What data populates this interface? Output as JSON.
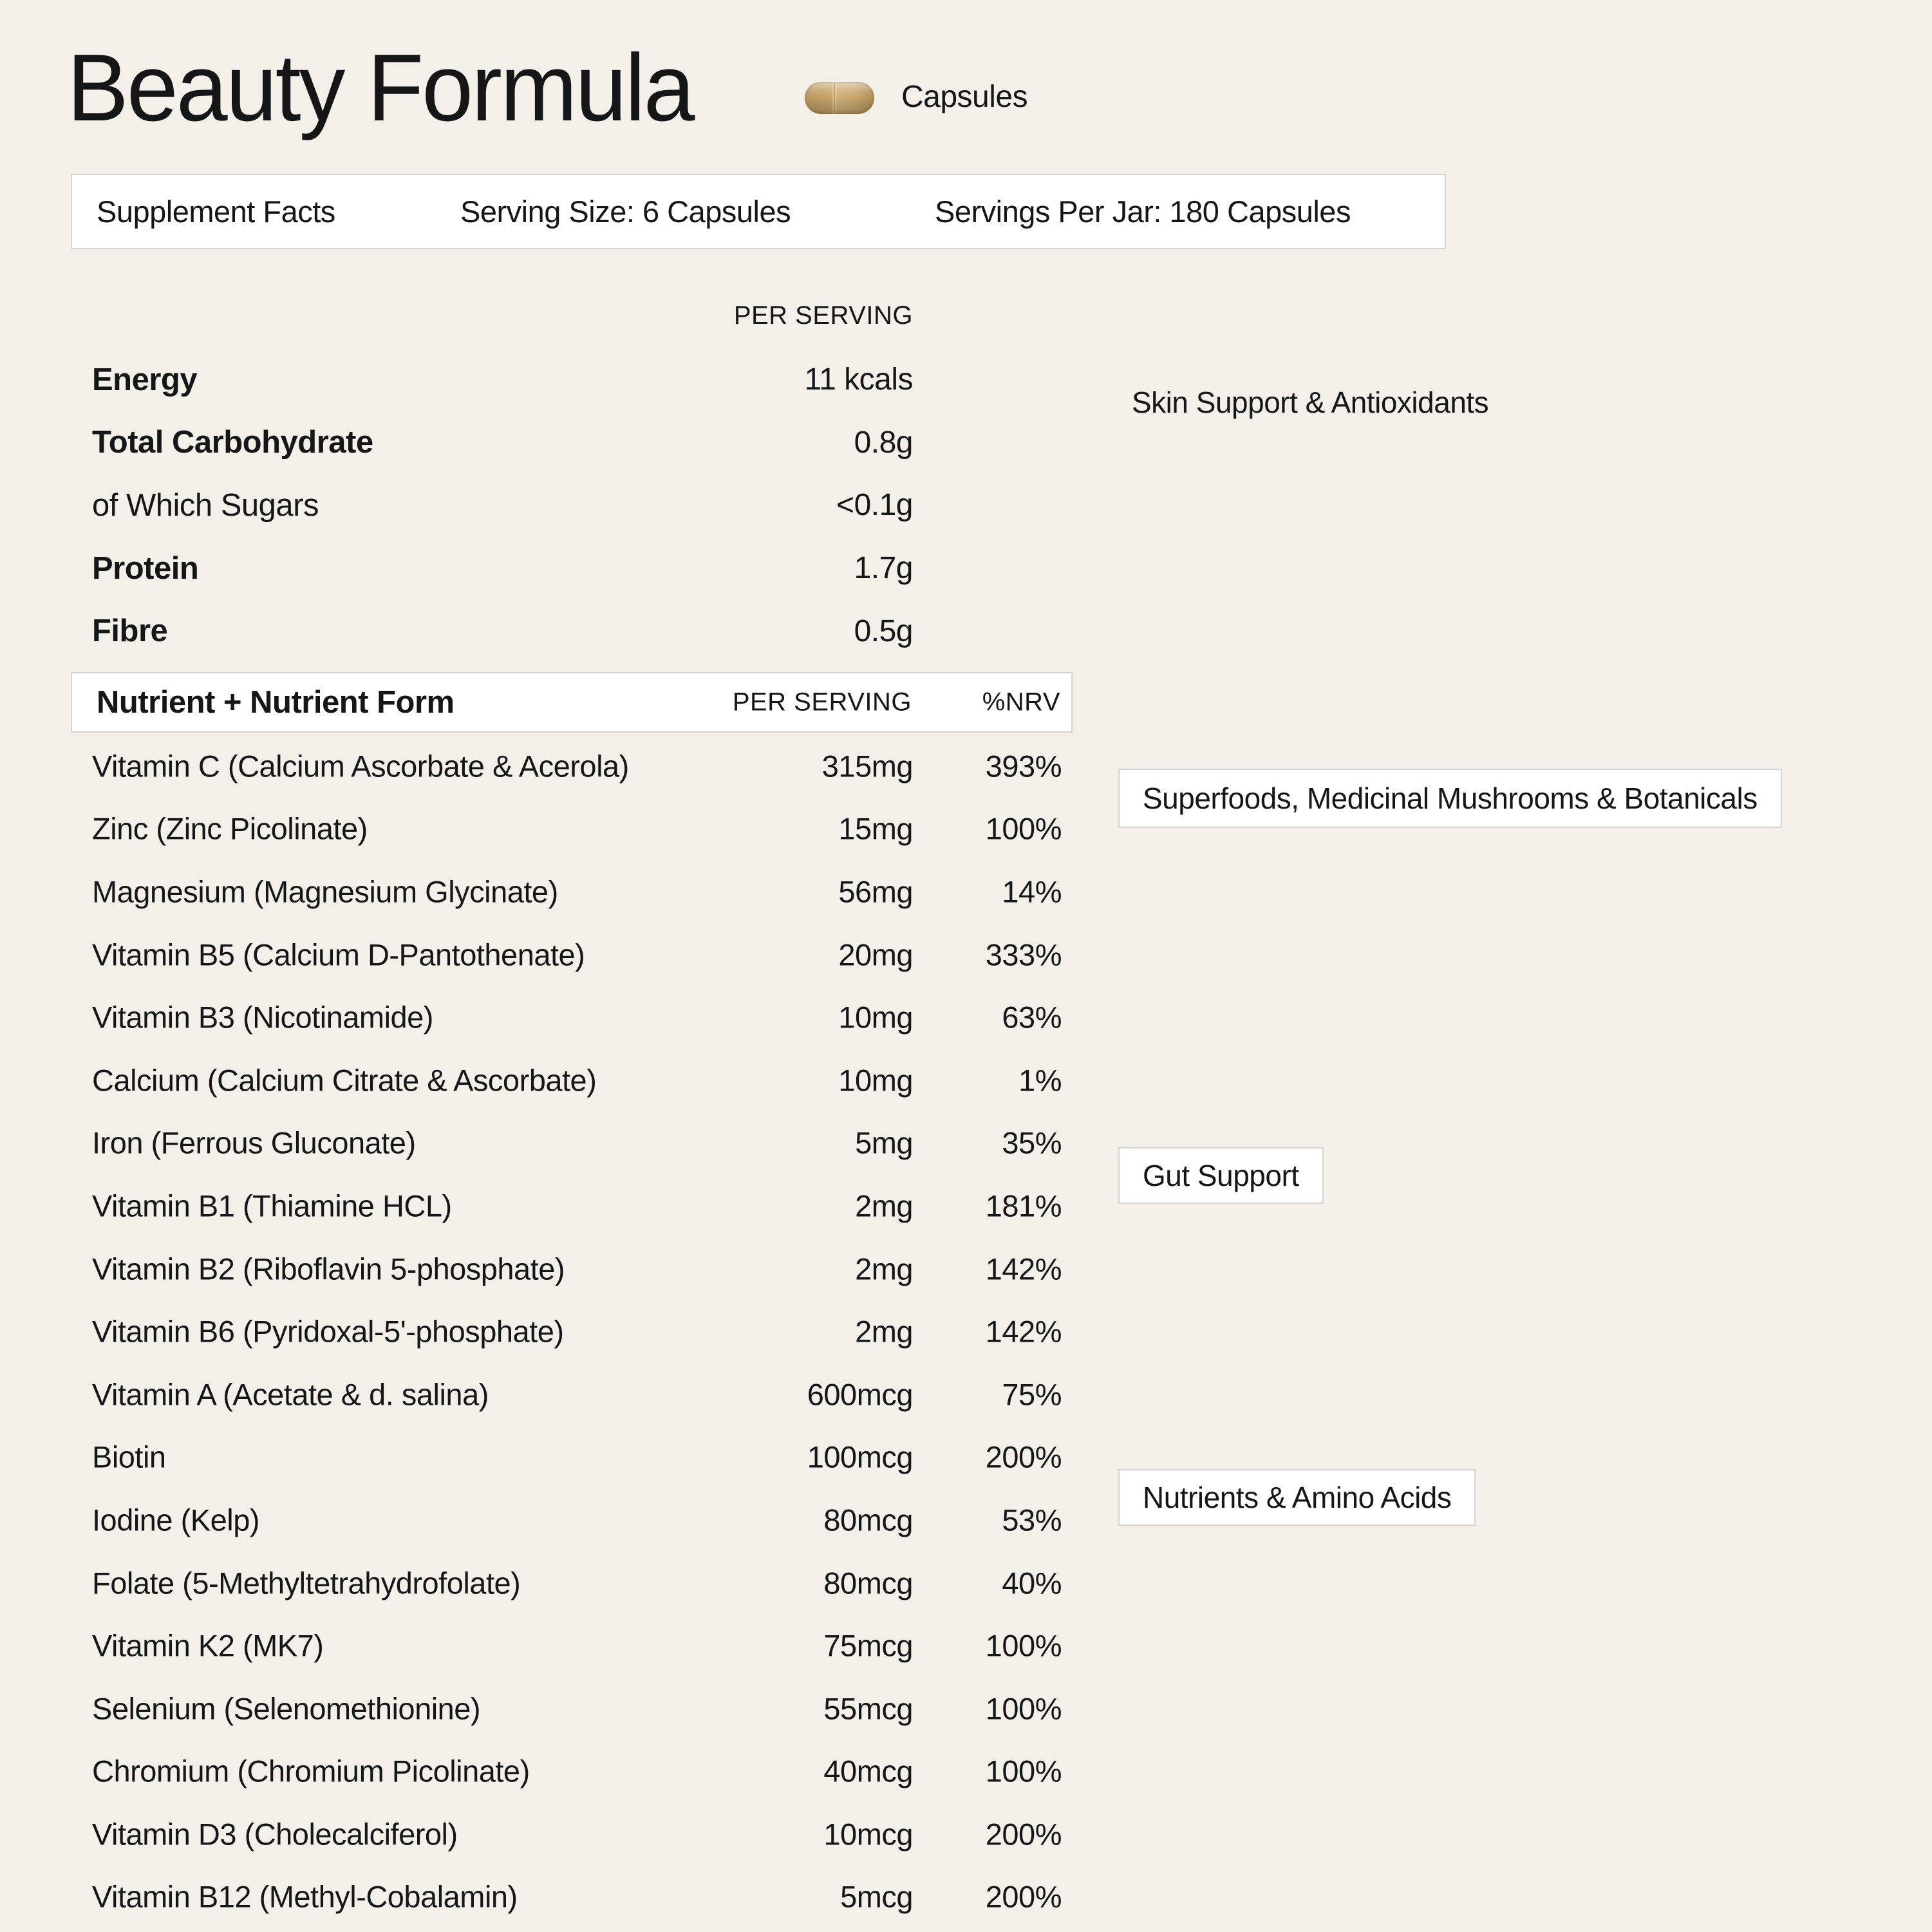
{
  "page": {
    "title": "Beauty Formula",
    "format_label": "Capsules"
  },
  "facts_bar": {
    "label": "Supplement Facts",
    "serving_size": "Serving Size: 6 Capsules",
    "servings_per_jar": "Servings Per Jar: 180 Capsules"
  },
  "macros": {
    "column_header": "PER SERVING",
    "rows": [
      {
        "label": "Energy",
        "value": "11 kcals",
        "bold": true
      },
      {
        "label": "Total Carbohydrate",
        "value": "0.8g",
        "bold": true
      },
      {
        "label": "of Which Sugars",
        "value": "<0.1g",
        "bold": false
      },
      {
        "label": "Protein",
        "value": "1.7g",
        "bold": true
      },
      {
        "label": "Fibre",
        "value": "0.5g",
        "bold": true
      }
    ]
  },
  "nutrients": {
    "header": {
      "name": "Nutrient + Nutrient Form",
      "per_serving": "PER SERVING",
      "nrv": "%NRV"
    },
    "rows": [
      {
        "name": "Vitamin C (Calcium Ascorbate & Acerola)",
        "amount": "315mg",
        "nrv": "393%"
      },
      {
        "name": "Zinc (Zinc Picolinate)",
        "amount": "15mg",
        "nrv": "100%"
      },
      {
        "name": "Magnesium (Magnesium Glycinate)",
        "amount": "56mg",
        "nrv": "14%"
      },
      {
        "name": "Vitamin B5 (Calcium D-Pantothenate)",
        "amount": "20mg",
        "nrv": "333%"
      },
      {
        "name": "Vitamin B3 (Nicotinamide)",
        "amount": "10mg",
        "nrv": "63%"
      },
      {
        "name": "Calcium (Calcium Citrate & Ascorbate)",
        "amount": "10mg",
        "nrv": "1%"
      },
      {
        "name": "Iron (Ferrous Gluconate)",
        "amount": "5mg",
        "nrv": "35%"
      },
      {
        "name": "Vitamin B1 (Thiamine HCL)",
        "amount": "2mg",
        "nrv": "181%"
      },
      {
        "name": "Vitamin B2 (Riboflavin 5-phosphate)",
        "amount": "2mg",
        "nrv": "142%"
      },
      {
        "name": "Vitamin B6 (Pyridoxal-5'-phosphate)",
        "amount": "2mg",
        "nrv": "142%"
      },
      {
        "name": "Vitamin A (Acetate & d. salina)",
        "amount": "600mcg",
        "nrv": "75%"
      },
      {
        "name": "Biotin",
        "amount": "100mcg",
        "nrv": "200%"
      },
      {
        "name": "Iodine (Kelp)",
        "amount": "80mcg",
        "nrv": "53%"
      },
      {
        "name": "Folate (5-Methyltetrahydrofolate)",
        "amount": "80mcg",
        "nrv": "40%"
      },
      {
        "name": "Vitamin K2 (MK7)",
        "amount": "75mcg",
        "nrv": "100%"
      },
      {
        "name": "Selenium (Selenomethionine)",
        "amount": "55mcg",
        "nrv": "100%"
      },
      {
        "name": "Chromium (Chromium Picolinate)",
        "amount": "40mcg",
        "nrv": "100%"
      },
      {
        "name": "Vitamin D3 (Cholecalciferol)",
        "amount": "10mcg",
        "nrv": "200%"
      },
      {
        "name": "Vitamin B12 (Methyl-Cobalamin)",
        "amount": "5mcg",
        "nrv": "200%"
      }
    ]
  },
  "category_labels": [
    {
      "label": "Skin Support & Antioxidants",
      "boxed": false
    },
    {
      "label": "Superfoods, Medicinal Mushrooms & Botanicals",
      "boxed": true
    },
    {
      "label": "Gut Support",
      "boxed": true
    },
    {
      "label": "Nutrients & Amino Acids",
      "boxed": true
    }
  ],
  "colors": {
    "background": "#f2f0e9",
    "text": "#161616",
    "panel": "#ffffff",
    "panel_border": "#d6d4cd",
    "capsule_light": "#e3c992",
    "capsule_mid": "#c7a66c",
    "capsule_dark": "#b1905a"
  }
}
